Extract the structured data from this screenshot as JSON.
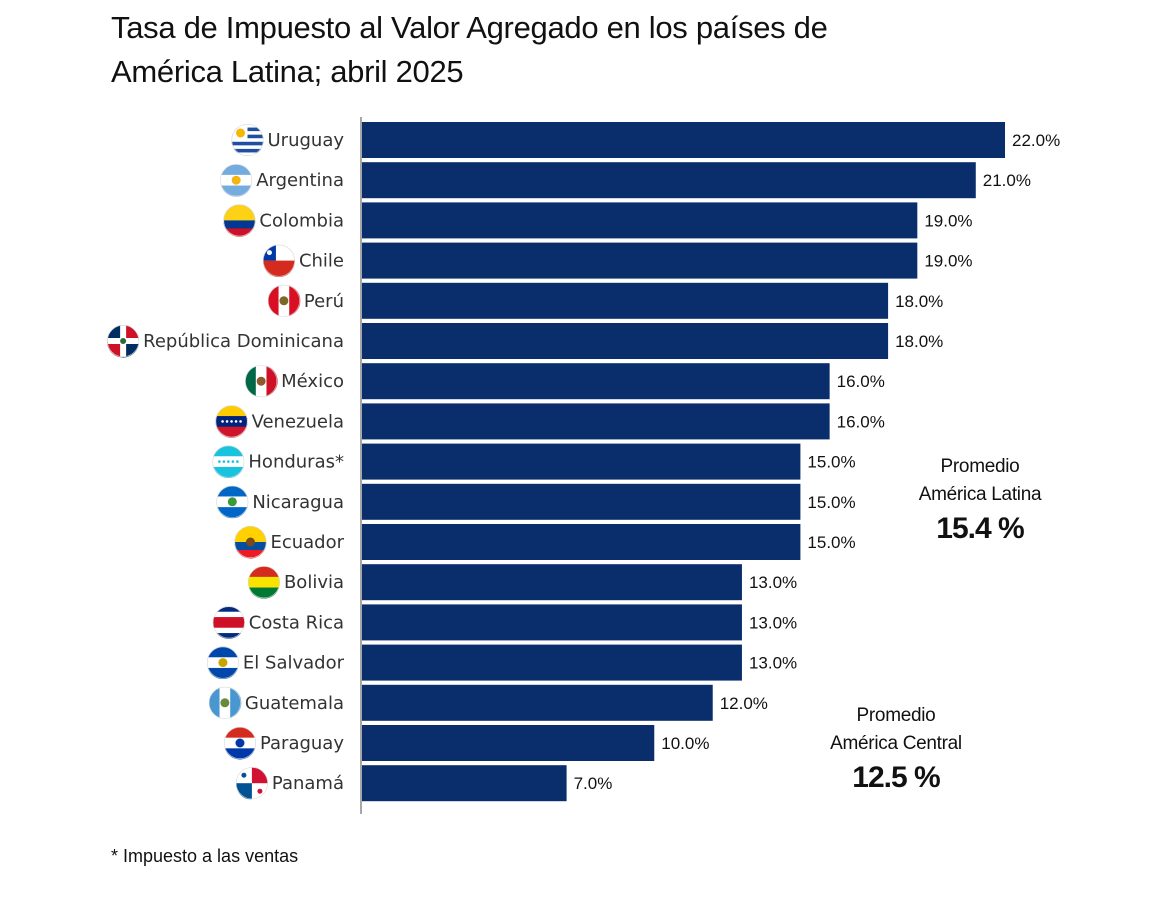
{
  "header": {
    "title_line1": "Tasa de Impuesto al Valor Agregado en los países de",
    "title_line2": "América Latina; abril 2025"
  },
  "footnote": "* Impuesto a las ventas",
  "averages": {
    "latam": {
      "line1": "Promedio",
      "line2": "América Latina",
      "value": "15.4 %"
    },
    "central": {
      "line1": "Promedio",
      "line2": "América Central",
      "value": "12.5 %"
    }
  },
  "chart_data": {
    "type": "bar",
    "orientation": "horizontal",
    "title": "Tasa de Impuesto al Valor Agregado en los países de América Latina; abril 2025",
    "categories": [
      "Uruguay",
      "Argentina",
      "Colombia",
      "Chile",
      "Perú",
      "República Dominicana",
      "México",
      "Venezuela",
      "Honduras*",
      "Nicaragua",
      "Ecuador",
      "Bolivia",
      "Costa Rica",
      "El Salvador",
      "Guatemala",
      "Paraguay",
      "Panamá"
    ],
    "values": [
      22.0,
      21.0,
      19.0,
      19.0,
      18.0,
      18.0,
      16.0,
      16.0,
      15.0,
      15.0,
      15.0,
      13.0,
      13.0,
      13.0,
      12.0,
      10.0,
      7.0
    ],
    "value_labels": [
      "22.0%",
      "21.0%",
      "19.0%",
      "19.0%",
      "18.0%",
      "18.0%",
      "16.0%",
      "16.0%",
      "15.0%",
      "15.0%",
      "15.0%",
      "13.0%",
      "13.0%",
      "13.0%",
      "12.0%",
      "10.0%",
      "7.0%"
    ],
    "bar_color": "#0a2e6b",
    "grid": false,
    "flags": [
      {
        "icon": "uruguay-flag-icon",
        "stripes": [
          "#ffffff",
          "#1f4fa0",
          "#ffffff",
          "#1f4fa0",
          "#ffffff",
          "#1f4fa0",
          "#ffffff",
          "#1f4fa0",
          "#ffffff"
        ],
        "dir": "h",
        "emblem": "sun",
        "emblem_color": "#f5b700"
      },
      {
        "icon": "argentina-flag-icon",
        "stripes": [
          "#74acdf",
          "#ffffff",
          "#74acdf"
        ],
        "dir": "h",
        "emblem": "sun",
        "emblem_color": "#f6b40e"
      },
      {
        "icon": "colombia-flag-icon",
        "stripes": [
          "#fcd116",
          "#fcd116",
          "#003893",
          "#ce1126"
        ],
        "dir": "h"
      },
      {
        "icon": "chile-flag-icon",
        "stripes": [
          "#ffffff",
          "#d52b1e"
        ],
        "dir": "h",
        "emblem": "chile",
        "emblem_color": "#0039a6"
      },
      {
        "icon": "peru-flag-icon",
        "stripes": [
          "#d91023",
          "#ffffff",
          "#d91023"
        ],
        "dir": "v",
        "emblem": "crest",
        "emblem_color": "#7a6a2a"
      },
      {
        "icon": "dominican-republic-flag-icon",
        "stripes": [
          "#002d62"
        ],
        "dir": "h",
        "emblem": "dr",
        "emblem_color": "#ce1126"
      },
      {
        "icon": "mexico-flag-icon",
        "stripes": [
          "#006847",
          "#ffffff",
          "#ce1126"
        ],
        "dir": "v",
        "emblem": "crest",
        "emblem_color": "#8b5a2b"
      },
      {
        "icon": "venezuela-flag-icon",
        "stripes": [
          "#ffcc00",
          "#00247d",
          "#cf142b"
        ],
        "dir": "h",
        "emblem": "stars",
        "emblem_color": "#ffffff"
      },
      {
        "icon": "honduras-flag-icon",
        "stripes": [
          "#18c3df",
          "#ffffff",
          "#18c3df"
        ],
        "dir": "h",
        "emblem": "stars",
        "emblem_color": "#18c3df"
      },
      {
        "icon": "nicaragua-flag-icon",
        "stripes": [
          "#0067c6",
          "#ffffff",
          "#0067c6"
        ],
        "dir": "h",
        "emblem": "crest",
        "emblem_color": "#3a9a3a"
      },
      {
        "icon": "ecuador-flag-icon",
        "stripes": [
          "#ffd100",
          "#ffd100",
          "#034ea2",
          "#ed1c24"
        ],
        "dir": "h",
        "emblem": "crest",
        "emblem_color": "#7a4a1a"
      },
      {
        "icon": "bolivia-flag-icon",
        "stripes": [
          "#d52b1e",
          "#f9e300",
          "#007934"
        ],
        "dir": "h"
      },
      {
        "icon": "costa-rica-flag-icon",
        "stripes": [
          "#002b7f",
          "#ffffff",
          "#ce1126",
          "#ce1126",
          "#ffffff",
          "#002b7f"
        ],
        "dir": "h"
      },
      {
        "icon": "el-salvador-flag-icon",
        "stripes": [
          "#0047ab",
          "#ffffff",
          "#0047ab"
        ],
        "dir": "h",
        "emblem": "crest",
        "emblem_color": "#c9a400"
      },
      {
        "icon": "guatemala-flag-icon",
        "stripes": [
          "#4997d0",
          "#ffffff",
          "#4997d0"
        ],
        "dir": "v",
        "emblem": "crest",
        "emblem_color": "#6a8a3a"
      },
      {
        "icon": "paraguay-flag-icon",
        "stripes": [
          "#d52b1e",
          "#ffffff",
          "#0038a8"
        ],
        "dir": "h",
        "emblem": "crest",
        "emblem_color": "#0038a8"
      },
      {
        "icon": "panama-flag-icon",
        "stripes": [
          "#ffffff"
        ],
        "dir": "h",
        "emblem": "panama",
        "emblem_color": "#d21034"
      }
    ]
  }
}
